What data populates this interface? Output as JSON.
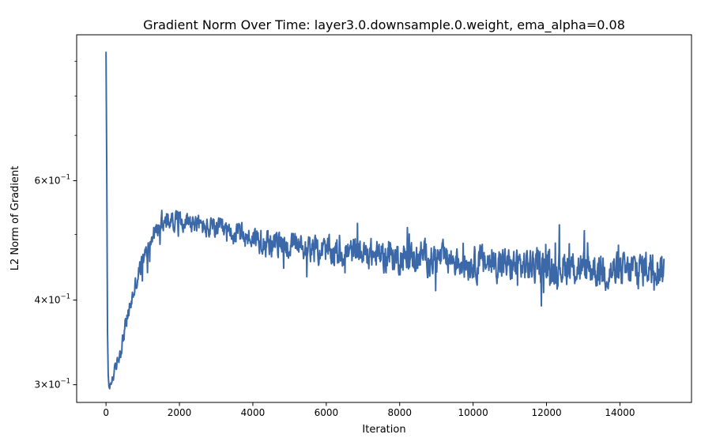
{
  "chart_data": {
    "type": "line",
    "title": "Gradient Norm Over Time: layer3.0.downsample.0.weight, ema_alpha=0.08",
    "xlabel": "Iteration",
    "ylabel": "L2 Norm of Gradient",
    "xlim": [
      -800,
      15950
    ],
    "ylim": [
      0.2825,
      0.985
    ],
    "yscale": "log",
    "grid": false,
    "line_color": "#3b68a8",
    "x_ticks": [
      {
        "value": 0,
        "label": "0"
      },
      {
        "value": 2000,
        "label": "2000"
      },
      {
        "value": 4000,
        "label": "4000"
      },
      {
        "value": 6000,
        "label": "6000"
      },
      {
        "value": 8000,
        "label": "8000"
      },
      {
        "value": 10000,
        "label": "10000"
      },
      {
        "value": 12000,
        "label": "12000"
      },
      {
        "value": 14000,
        "label": "14000"
      }
    ],
    "y_major_ticks": [
      {
        "value": 0.3,
        "label_mantissa": "3",
        "label_exponent": "−1"
      },
      {
        "value": 0.4,
        "label_mantissa": "4",
        "label_exponent": "−1"
      },
      {
        "value": 0.6,
        "label_mantissa": "6",
        "label_exponent": "−1"
      }
    ],
    "y_minor_ticks": [
      0.5,
      0.7,
      0.8,
      0.9
    ],
    "series": [
      {
        "x": [
          0,
          20,
          40,
          60,
          80,
          100,
          130,
          160,
          200,
          250,
          300,
          350,
          400,
          450,
          500,
          550,
          600,
          650,
          700,
          750,
          800,
          850,
          900,
          950,
          1000,
          1100,
          1200,
          1300,
          1400,
          1500,
          1600,
          1800,
          2000,
          2200,
          2400,
          2600,
          2800,
          3000,
          3200,
          3400,
          3600,
          3800,
          4000,
          4300,
          4600,
          5000,
          5400,
          5800,
          6200,
          6600,
          7000,
          7400,
          7800,
          8200,
          8600,
          9000,
          9400,
          9800,
          10200,
          10600,
          11000,
          11400,
          11800,
          12200,
          12600,
          13000,
          13400,
          13800,
          14200,
          14400,
          14600,
          14800,
          15000,
          15200
        ],
        "y": [
          0.93,
          0.62,
          0.36,
          0.31,
          0.298,
          0.296,
          0.3,
          0.305,
          0.31,
          0.315,
          0.322,
          0.33,
          0.338,
          0.348,
          0.36,
          0.37,
          0.38,
          0.39,
          0.4,
          0.41,
          0.42,
          0.43,
          0.44,
          0.448,
          0.455,
          0.47,
          0.485,
          0.5,
          0.51,
          0.515,
          0.52,
          0.525,
          0.525,
          0.525,
          0.52,
          0.515,
          0.51,
          0.51,
          0.505,
          0.5,
          0.5,
          0.495,
          0.495,
          0.49,
          0.485,
          0.48,
          0.475,
          0.475,
          0.47,
          0.47,
          0.47,
          0.465,
          0.465,
          0.46,
          0.465,
          0.46,
          0.46,
          0.455,
          0.455,
          0.455,
          0.45,
          0.45,
          0.45,
          0.445,
          0.45,
          0.445,
          0.445,
          0.44,
          0.44,
          0.445,
          0.445,
          0.45,
          0.45,
          0.445
        ],
        "noise": [
          0.0,
          0.0,
          0.0,
          0.004,
          0.004,
          0.004,
          0.005,
          0.005,
          0.006,
          0.007,
          0.008,
          0.008,
          0.009,
          0.009,
          0.01,
          0.01,
          0.01,
          0.011,
          0.011,
          0.012,
          0.012,
          0.013,
          0.013,
          0.014,
          0.014,
          0.014,
          0.015,
          0.015,
          0.015,
          0.015,
          0.015,
          0.015,
          0.016,
          0.016,
          0.016,
          0.016,
          0.017,
          0.017,
          0.018,
          0.018,
          0.018,
          0.018,
          0.019,
          0.019,
          0.02,
          0.02,
          0.02,
          0.021,
          0.021,
          0.021,
          0.022,
          0.022,
          0.022,
          0.022,
          0.023,
          0.023,
          0.023,
          0.023,
          0.024,
          0.024,
          0.024,
          0.024,
          0.024,
          0.025,
          0.025,
          0.025,
          0.026,
          0.026,
          0.026,
          0.026,
          0.025,
          0.025,
          0.025,
          0.025
        ]
      }
    ]
  }
}
